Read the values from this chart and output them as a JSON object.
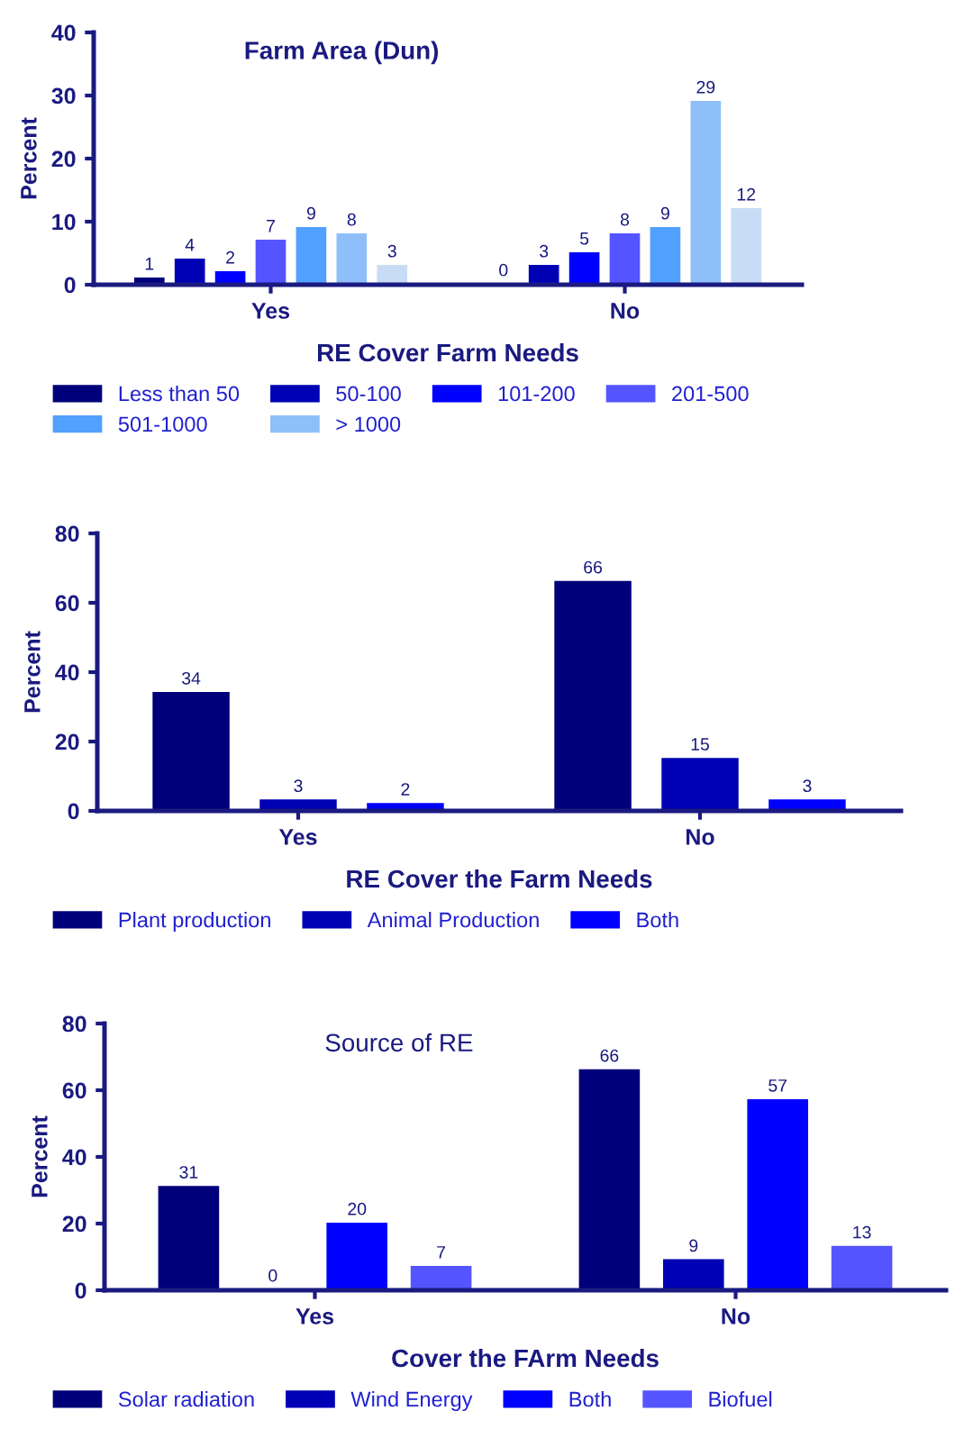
{
  "chart_data": [
    {
      "type": "bar",
      "title": "Farm Area (Dun)",
      "xlabel": "RE Cover Farm Needs",
      "ylabel": "Percent",
      "categories": [
        "Yes",
        "No"
      ],
      "ylim": [
        0,
        40
      ],
      "yticks": [
        0,
        10,
        20,
        30,
        40
      ],
      "data_labels": true,
      "grid": false,
      "legend": "bottom",
      "series": [
        {
          "name": "Less than 50",
          "color": "#00007a",
          "values": [
            1,
            0
          ]
        },
        {
          "name": "50-100",
          "color": "#0000b4",
          "values": [
            4,
            3
          ]
        },
        {
          "name": "101-200",
          "color": "#0000ff",
          "values": [
            2,
            5
          ]
        },
        {
          "name": "201-500",
          "color": "#5555ff",
          "values": [
            7,
            8
          ]
        },
        {
          "name": "501-1000",
          "color": "#52a0ff",
          "values": [
            9,
            9
          ]
        },
        {
          "name": "> 1000",
          "color": "#8fbff8",
          "values": [
            8,
            29
          ]
        },
        {
          "color": "#c8dcf5",
          "values": [
            3,
            12
          ]
        }
      ]
    },
    {
      "type": "bar",
      "xlabel": "RE Cover the Farm Needs",
      "ylabel": "Percent",
      "categories": [
        "Yes",
        "No"
      ],
      "ylim": [
        0,
        80
      ],
      "yticks": [
        0,
        20,
        40,
        60,
        80
      ],
      "data_labels": true,
      "grid": false,
      "legend": "bottom",
      "series": [
        {
          "name": "Plant production",
          "color": "#00007a",
          "values": [
            34,
            66
          ]
        },
        {
          "name": "Animal Production",
          "color": "#0000b4",
          "values": [
            3,
            15
          ]
        },
        {
          "name": "Both",
          "color": "#0000ff",
          "values": [
            2,
            3
          ]
        }
      ]
    },
    {
      "type": "bar",
      "title": "Source of RE",
      "xlabel": "Cover the FArm Needs",
      "ylabel": "Percent",
      "categories": [
        "Yes",
        "No"
      ],
      "ylim": [
        0,
        80
      ],
      "yticks": [
        0,
        20,
        40,
        60,
        80
      ],
      "data_labels": true,
      "grid": false,
      "legend": "bottom",
      "series": [
        {
          "name": "Solar radiation",
          "color": "#00007a",
          "values": [
            31,
            66
          ]
        },
        {
          "name": "Wind Energy",
          "color": "#0000b4",
          "values": [
            0,
            9
          ]
        },
        {
          "name": "Both",
          "color": "#0000ff",
          "values": [
            20,
            57
          ]
        },
        {
          "name": "Biofuel",
          "color": "#5555ff",
          "values": [
            7,
            13
          ]
        }
      ]
    }
  ]
}
